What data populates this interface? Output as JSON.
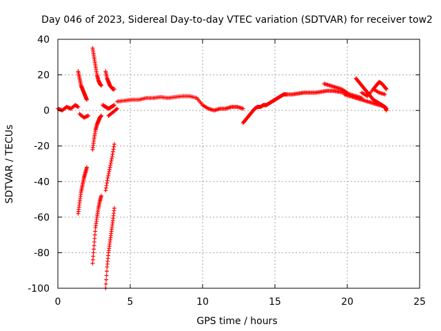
{
  "chart_data": {
    "type": "scatter",
    "title": "Day 046 of 2023, Sidereal Day-to-day VTEC variation (SDTVAR) for receiver tow2",
    "xlabel": "GPS time / hours",
    "ylabel": "SDTVAR / TECUs",
    "xlim": [
      0,
      25
    ],
    "ylim": [
      -100,
      40
    ],
    "xticks": [
      "0",
      "5",
      "10",
      "15",
      "20",
      "25"
    ],
    "yticks": [
      "40",
      "20",
      "0",
      "-20",
      "-40",
      "-60",
      "-80",
      "-100"
    ],
    "marker": "plus",
    "color": "#ff0000",
    "grid": true,
    "series": [
      {
        "name": "SDTVAR",
        "segments": [
          {
            "x": [
              0.0,
              0.3,
              0.6,
              0.9,
              1.2,
              1.4
            ],
            "y": [
              1,
              0,
              2,
              1,
              3,
              2
            ]
          },
          {
            "x": [
              1.4,
              1.5,
              1.6,
              1.7,
              1.8,
              1.9,
              2.0
            ],
            "y": [
              22,
              18,
              14,
              12,
              10,
              8,
              6
            ]
          },
          {
            "x": [
              1.5,
              1.8,
              2.1
            ],
            "y": [
              -2,
              -4,
              -3
            ]
          },
          {
            "x": [
              1.4,
              1.5,
              1.6,
              1.7,
              1.8,
              1.9,
              2.0
            ],
            "y": [
              -58,
              -52,
              -46,
              -42,
              -38,
              -35,
              -32
            ]
          },
          {
            "x": [
              2.4,
              2.5,
              2.6,
              2.7,
              2.8,
              2.9,
              3.0
            ],
            "y": [
              35,
              30,
              25,
              20,
              17,
              15,
              14
            ]
          },
          {
            "x": [
              2.4,
              2.5,
              2.6,
              2.7,
              2.8,
              2.9,
              3.0
            ],
            "y": [
              -22,
              -16,
              -11,
              -8,
              -6,
              -4,
              -3
            ]
          },
          {
            "x": [
              2.4,
              2.5,
              2.6,
              2.7,
              2.8,
              2.9,
              3.0
            ],
            "y": [
              -86,
              -76,
              -66,
              -60,
              -55,
              -51,
              -48
            ]
          },
          {
            "x": [
              3.3,
              3.4,
              3.5,
              3.6,
              3.7,
              3.8,
              3.9
            ],
            "y": [
              22,
              18,
              16,
              14,
              13,
              12,
              12
            ]
          },
          {
            "x": [
              3.1,
              3.3,
              3.5,
              3.7,
              3.9
            ],
            "y": [
              3,
              2,
              1,
              2,
              3
            ]
          },
          {
            "x": [
              3.3,
              3.45,
              3.6,
              3.75,
              3.9
            ],
            "y": [
              -45,
              -38,
              -32,
              -26,
              -19
            ]
          },
          {
            "x": [
              3.3,
              3.4,
              3.5,
              3.6,
              3.7,
              3.8,
              3.9
            ],
            "y": [
              -100,
              -88,
              -80,
              -74,
              -68,
              -62,
              -55
            ]
          },
          {
            "x": [
              3.5,
              3.8,
              4.1
            ],
            "y": [
              -3,
              -1,
              1
            ]
          },
          {
            "x": [
              4.1,
              4.6,
              5.1,
              5.6,
              6.1,
              6.6,
              7.1,
              7.6,
              8.1,
              8.6,
              9.1,
              9.6,
              10.0,
              10.4,
              10.8,
              11.2,
              11.6,
              12.0,
              12.4,
              12.8
            ],
            "y": [
              5,
              5.5,
              6,
              6,
              7,
              7,
              7.5,
              7,
              7.5,
              8,
              8,
              7,
              3,
              1,
              0,
              1,
              1,
              2,
              2,
              1
            ]
          },
          {
            "x": [
              12.8,
              13.0,
              13.2,
              13.4,
              13.6,
              13.8,
              14.0,
              14.2,
              14.4,
              14.6,
              14.8,
              15.0,
              15.2,
              15.4,
              15.6,
              15.8
            ],
            "y": [
              -7,
              -5,
              -3,
              -1,
              1,
              2,
              2,
              3,
              3,
              4,
              5,
              6,
              7,
              8,
              9,
              9
            ]
          },
          {
            "x": [
              15.8,
              16.2,
              16.6,
              17.0,
              17.4,
              17.8,
              18.2,
              18.6,
              19.0,
              19.4,
              19.8,
              20.2,
              20.6,
              21.0
            ],
            "y": [
              9,
              9,
              9.5,
              10,
              10,
              10,
              10.5,
              11,
              11,
              10.5,
              10,
              9,
              8,
              7
            ]
          },
          {
            "x": [
              18.4,
              18.8,
              19.2,
              19.6,
              20.0
            ],
            "y": [
              15,
              14,
              13,
              12,
              10
            ]
          },
          {
            "x": [
              19.8,
              20.2,
              20.6,
              21.0,
              21.4,
              21.8,
              22.2,
              22.6,
              22.7
            ],
            "y": [
              9,
              8,
              7,
              6,
              5,
              4,
              3,
              2,
              1
            ]
          },
          {
            "x": [
              20.6,
              20.8,
              21.0,
              21.2,
              21.4,
              21.6,
              21.8,
              22.0,
              22.2,
              22.4,
              22.6,
              22.7
            ],
            "y": [
              18,
              16,
              14,
              12,
              10,
              8,
              6,
              5,
              4,
              3,
              2,
              0
            ]
          },
          {
            "x": [
              21.8,
              22.0,
              22.2,
              22.4,
              22.6,
              22.7
            ],
            "y": [
              12,
              14,
              16,
              15,
              13,
              12
            ]
          },
          {
            "x": [
              21.0,
              21.4,
              21.8,
              22.2,
              22.6
            ],
            "y": [
              10,
              8,
              12,
              10,
              9
            ]
          }
        ]
      }
    ]
  }
}
